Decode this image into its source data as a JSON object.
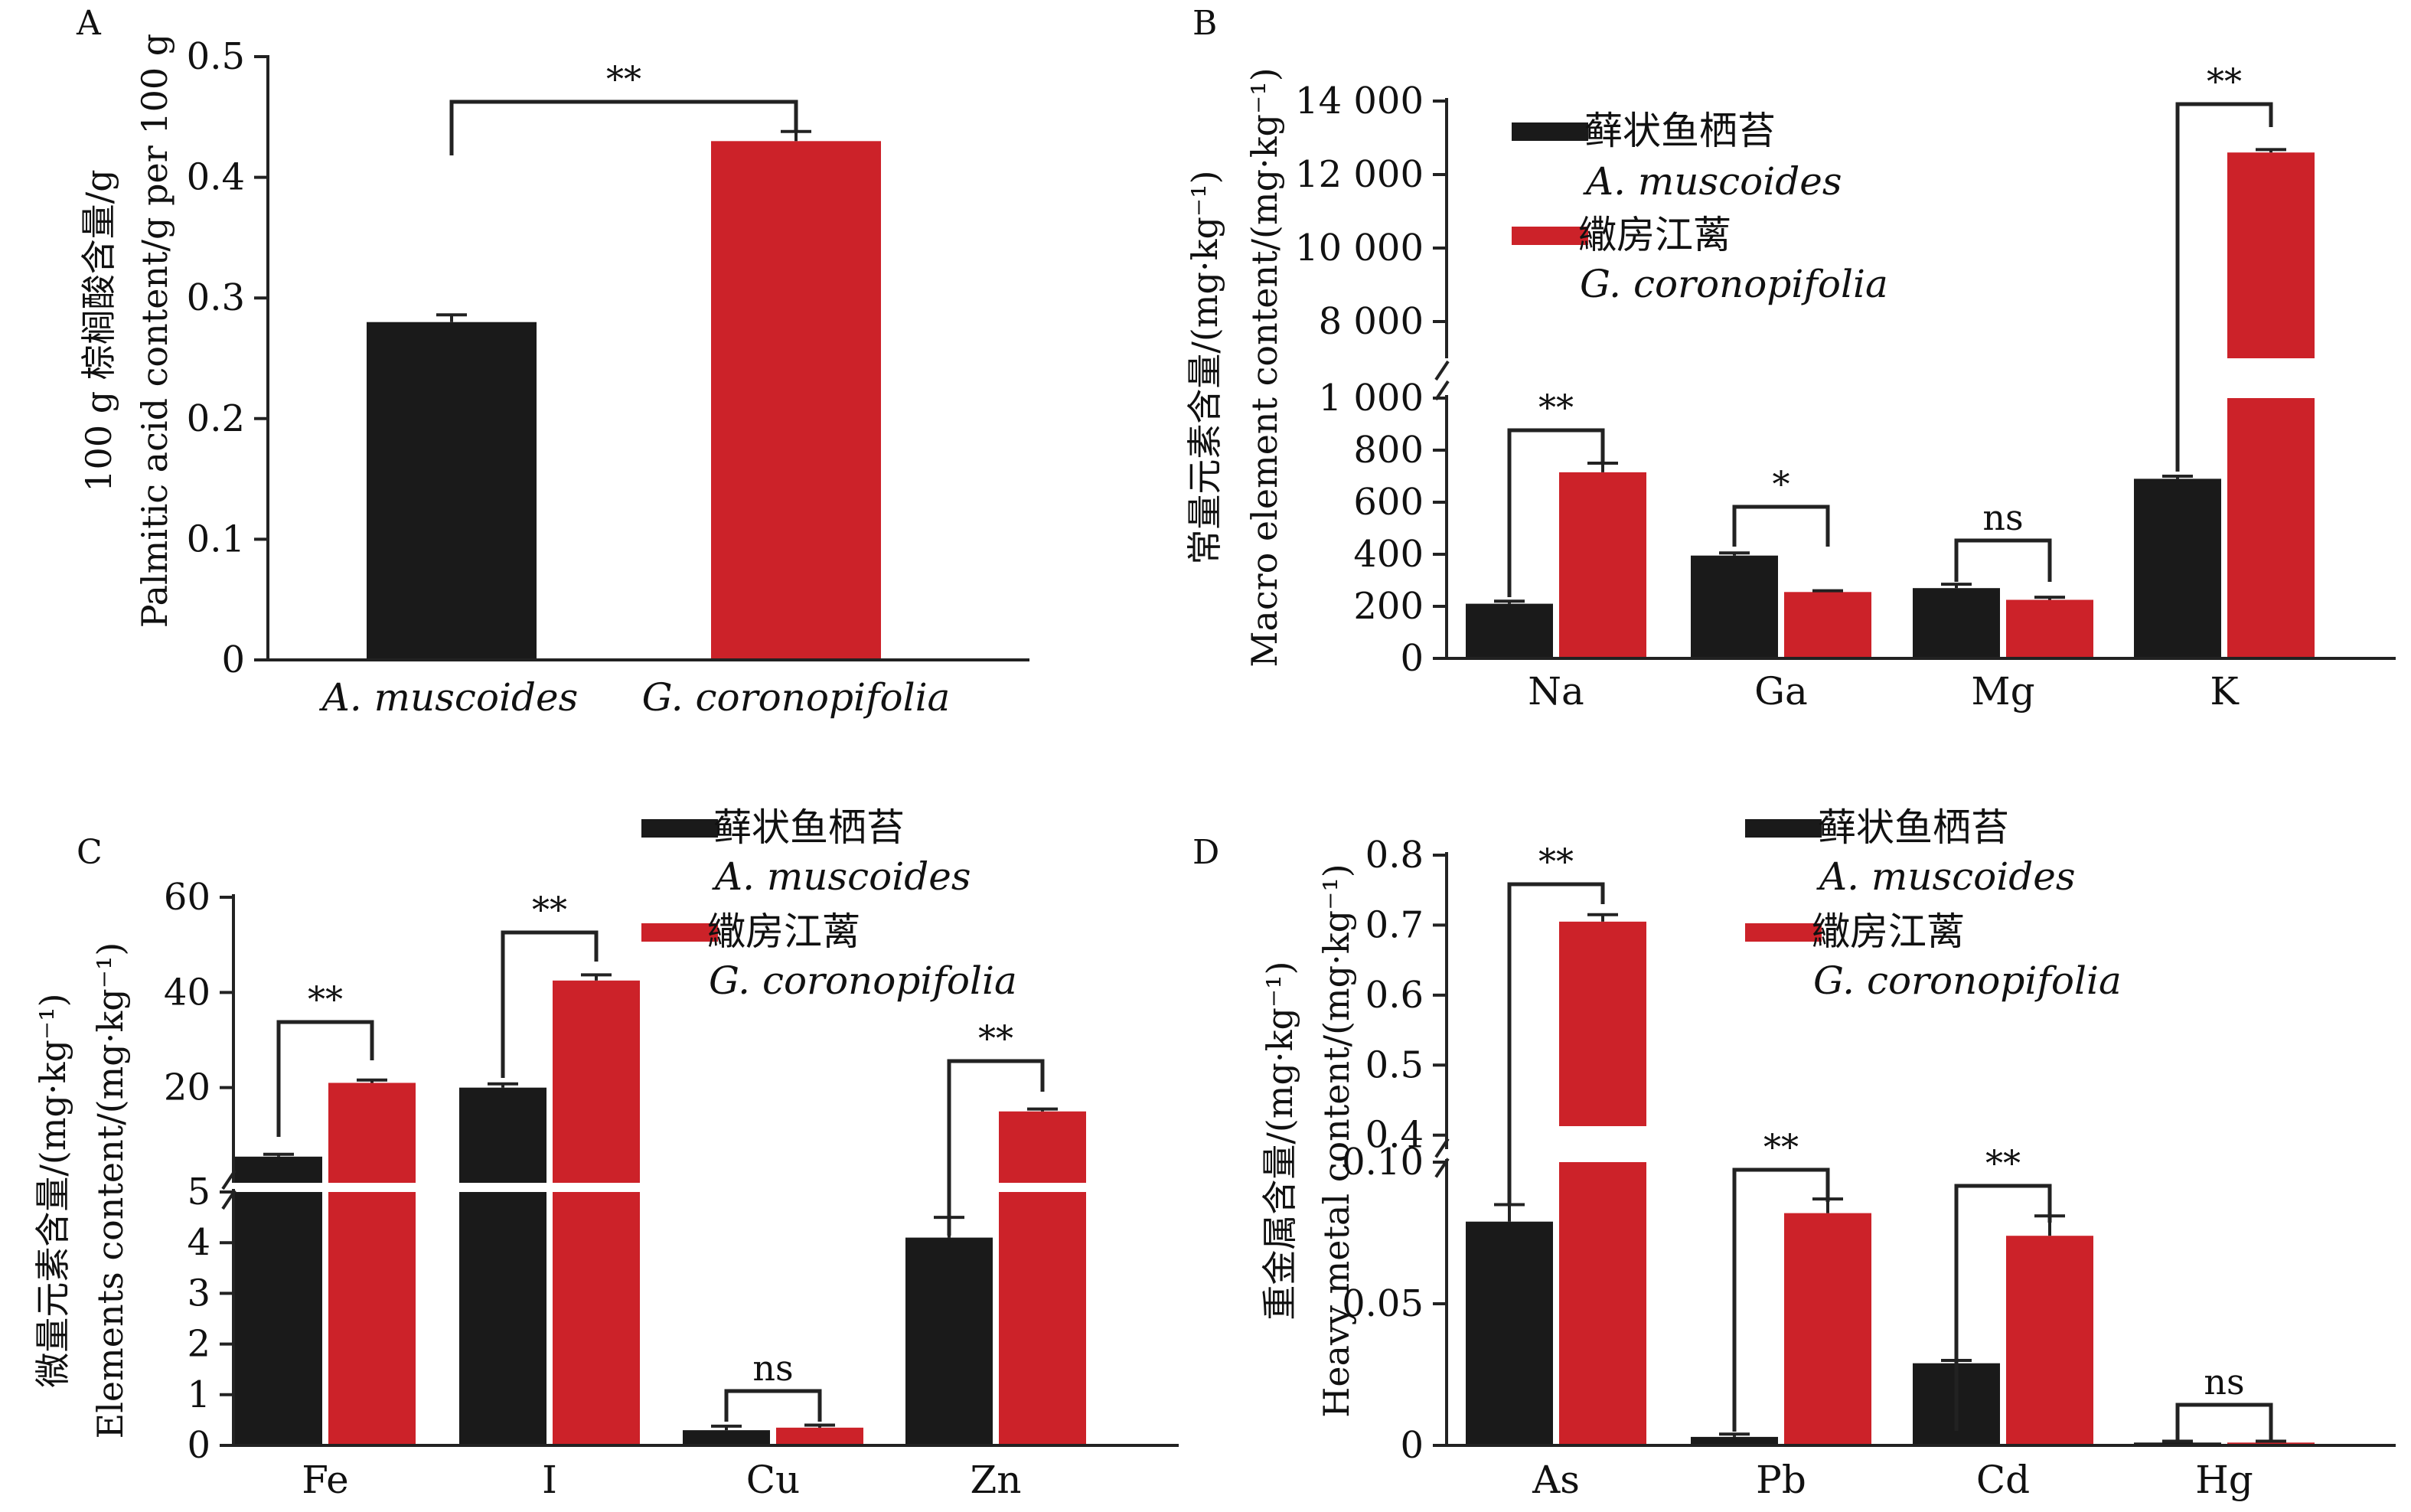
{
  "colors": {
    "series_a": "#1a1a1a",
    "series_b": "#cc2229",
    "axis": "#222222"
  },
  "legend": [
    {
      "cn": "藓状鱼栖苔",
      "latin": "A. muscoides"
    },
    {
      "cn": "繖房江蓠",
      "latin": "G. coronopifolia"
    }
  ],
  "chart_data": [
    {
      "panel": "A",
      "type": "bar",
      "ylabel_cn": "100 g 棕榈酸含量/g",
      "ylabel_en": "Palmitic acid content/g per 100 g",
      "ylim": [
        0,
        0.5
      ],
      "yticks": [
        "0",
        "0.1",
        "0.2",
        "0.3",
        "0.4",
        "0.5"
      ],
      "categories": [
        "A. muscoides",
        "G. coronopifolia"
      ],
      "values": [
        0.28,
        0.43
      ],
      "errors": [
        0.006,
        0.008
      ],
      "significance": [
        "**"
      ]
    },
    {
      "panel": "B",
      "type": "bar",
      "ylabel_cn": "常量元素含量/(mg·kg⁻¹)",
      "ylabel_en": "Macro element content/(mg·kg⁻¹)",
      "axis_break": true,
      "ylim_lower": [
        0,
        1000
      ],
      "ylim_upper": [
        7000,
        14000
      ],
      "yticks_lower": [
        "0",
        "200",
        "400",
        "600",
        "800",
        "1 000"
      ],
      "yticks_upper": [
        "8 000",
        "10 000",
        "12 000",
        "14 000"
      ],
      "categories": [
        "Na",
        "Ga",
        "Mg",
        "K"
      ],
      "series": [
        {
          "name": "A. muscoides",
          "values": [
            210,
            395,
            270,
            690
          ],
          "errors": [
            10,
            10,
            15,
            10
          ]
        },
        {
          "name": "G. coronopifolia",
          "values": [
            715,
            255,
            225,
            12600
          ],
          "errors": [
            35,
            5,
            10,
            80
          ]
        }
      ],
      "significance": [
        "**",
        "*",
        "ns",
        "**"
      ]
    },
    {
      "panel": "C",
      "type": "bar",
      "ylabel_cn": "微量元素含量/(mg·kg⁻¹)",
      "ylabel_en": "Elements content/(mg·kg⁻¹)",
      "axis_break": true,
      "ylim_lower": [
        0,
        5
      ],
      "ylim_upper": [
        0,
        60
      ],
      "yticks_lower": [
        "0",
        "1",
        "2",
        "3",
        "4",
        "5"
      ],
      "yticks_upper": [
        "20",
        "40",
        "60"
      ],
      "categories": [
        "Fe",
        "I",
        "Cu",
        "Zn"
      ],
      "series": [
        {
          "name": "A. muscoides",
          "values": [
            5.5,
            20,
            0.3,
            4.1
          ],
          "errors": [
            0.5,
            0.8,
            0.08,
            0.4
          ]
        },
        {
          "name": "G. coronopifolia",
          "values": [
            21,
            42.5,
            0.35,
            15
          ],
          "errors": [
            0.6,
            1.2,
            0.05,
            0.5
          ]
        }
      ],
      "significance": [
        "**",
        "**",
        "ns",
        "**"
      ]
    },
    {
      "panel": "D",
      "type": "bar",
      "ylabel_cn": "重金属含量/(mg·kg⁻¹)",
      "ylabel_en": "Heavy metal content/(mg·kg⁻¹)",
      "axis_break": true,
      "ylim_lower": [
        0,
        0.1
      ],
      "ylim_upper": [
        0.38,
        0.8
      ],
      "yticks_lower": [
        "0",
        "0.05",
        "0.10"
      ],
      "yticks_upper": [
        "0.4",
        "0.5",
        "0.6",
        "0.7",
        "0.8"
      ],
      "categories": [
        "As",
        "Pb",
        "Cd",
        "Hg"
      ],
      "series": [
        {
          "name": "A. muscoides",
          "values": [
            0.079,
            0.003,
            0.029,
            0.001
          ],
          "errors": [
            0.006,
            0.001,
            0.001,
            0.0005
          ]
        },
        {
          "name": "G. coronopifolia",
          "values": [
            0.705,
            0.082,
            0.074,
            0.001
          ],
          "errors": [
            0.01,
            0.005,
            0.007,
            0.0005
          ]
        }
      ],
      "significance": [
        "**",
        "**",
        "**",
        "ns"
      ]
    }
  ]
}
